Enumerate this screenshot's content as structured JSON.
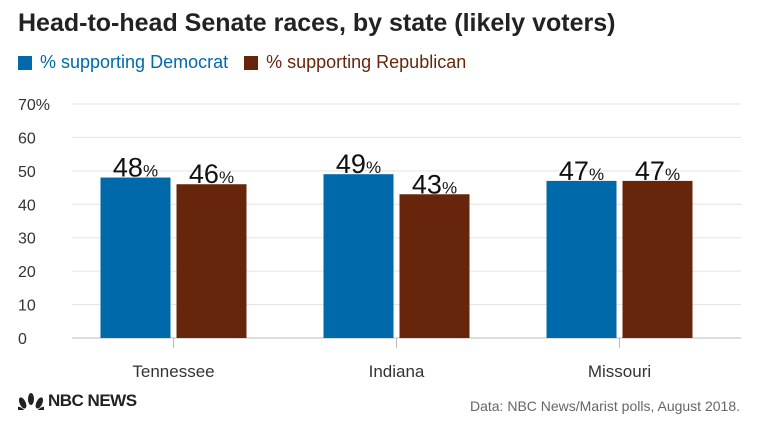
{
  "chart_data": {
    "type": "bar",
    "title": "Head-to-head Senate races, by state (likely voters)",
    "categories": [
      "Tennessee",
      "Indiana",
      "Missouri"
    ],
    "series": [
      {
        "name": "% supporting Democrat",
        "color": "#0069aa",
        "values": [
          48,
          49,
          47
        ]
      },
      {
        "name": "% supporting Republican",
        "color": "#67260b",
        "values": [
          46,
          43,
          47
        ]
      }
    ],
    "ylim": [
      0,
      70
    ],
    "yticks": [
      0,
      10,
      20,
      30,
      40,
      50,
      60,
      70
    ],
    "ytick_labels": [
      "0",
      "10",
      "20",
      "30",
      "40",
      "50",
      "60",
      "70%"
    ],
    "value_suffix": "%",
    "grid": true,
    "legend_position": "top-left"
  },
  "legend": {
    "dem_label": "% supporting Democrat",
    "rep_label": "% supporting Republican",
    "dem_color": "#0069aa",
    "rep_color": "#67260b"
  },
  "footer": {
    "logo_text": "NBC NEWS",
    "source": "Data: NBC News/Marist polls, August 2018."
  }
}
